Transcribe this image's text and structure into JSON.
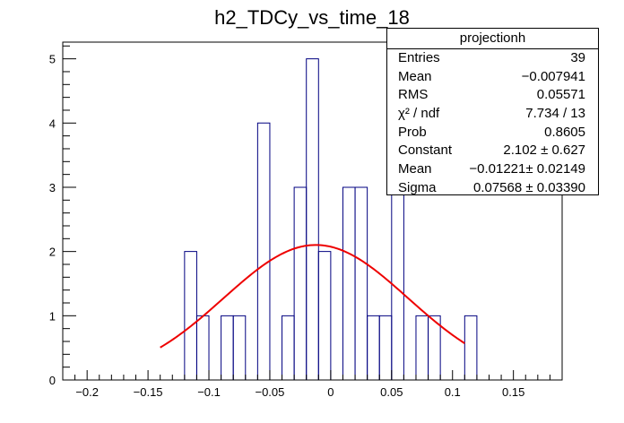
{
  "chart_data": {
    "type": "histogram",
    "title": "h2_TDCy_vs_time_18",
    "xlabel": "",
    "ylabel": "",
    "xlim": [
      -0.22,
      0.19
    ],
    "ylim": [
      0,
      5.26
    ],
    "x_ticks": [
      -0.2,
      -0.15,
      -0.1,
      -0.05,
      0,
      0.05,
      0.1,
      0.15
    ],
    "x_tick_labels": [
      "−0.2",
      "−0.15",
      "−0.1",
      "−0.05",
      "0",
      "0.05",
      "0.1",
      "0.15"
    ],
    "y_ticks": [
      0,
      1,
      2,
      3,
      4,
      5
    ],
    "y_tick_labels": [
      "0",
      "1",
      "2",
      "3",
      "4",
      "5"
    ],
    "bin_width": 0.01,
    "bins": [
      {
        "x": -0.12,
        "count": 2
      },
      {
        "x": -0.11,
        "count": 1
      },
      {
        "x": -0.1,
        "count": 0
      },
      {
        "x": -0.09,
        "count": 1
      },
      {
        "x": -0.08,
        "count": 1
      },
      {
        "x": -0.07,
        "count": 0
      },
      {
        "x": -0.06,
        "count": 4
      },
      {
        "x": -0.05,
        "count": 0
      },
      {
        "x": -0.04,
        "count": 1
      },
      {
        "x": -0.03,
        "count": 3
      },
      {
        "x": -0.02,
        "count": 5
      },
      {
        "x": -0.01,
        "count": 2
      },
      {
        "x": 0.0,
        "count": 0
      },
      {
        "x": 0.01,
        "count": 3
      },
      {
        "x": 0.02,
        "count": 3
      },
      {
        "x": 0.03,
        "count": 1
      },
      {
        "x": 0.04,
        "count": 1
      },
      {
        "x": 0.05,
        "count": 3
      },
      {
        "x": 0.06,
        "count": 0
      },
      {
        "x": 0.07,
        "count": 1
      },
      {
        "x": 0.08,
        "count": 1
      },
      {
        "x": 0.09,
        "count": 0
      },
      {
        "x": 0.1,
        "count": 0
      },
      {
        "x": 0.11,
        "count": 1
      }
    ],
    "fit": {
      "type": "gaus",
      "constant": 2.102,
      "mean": -0.01221,
      "sigma": 0.07568,
      "x_range": [
        -0.14,
        0.11
      ]
    },
    "colors": {
      "histogram": "#000080",
      "fit": "#ee0000",
      "axis": "#000000"
    }
  },
  "stats": {
    "name": "projectionh",
    "rows": [
      {
        "label": "Entries",
        "value": "39"
      },
      {
        "label": "Mean",
        "value": "−0.007941"
      },
      {
        "label": "RMS",
        "value": "0.05571"
      },
      {
        "label": "χ² / ndf",
        "value": "7.734 / 13"
      },
      {
        "label": "Prob",
        "value": "0.8605"
      },
      {
        "label": "Constant",
        "value": "2.102 ± 0.627"
      },
      {
        "label": "Mean",
        "value": "−0.01221± 0.02149"
      },
      {
        "label": "Sigma",
        "value": "0.07568 ± 0.03390"
      }
    ]
  }
}
